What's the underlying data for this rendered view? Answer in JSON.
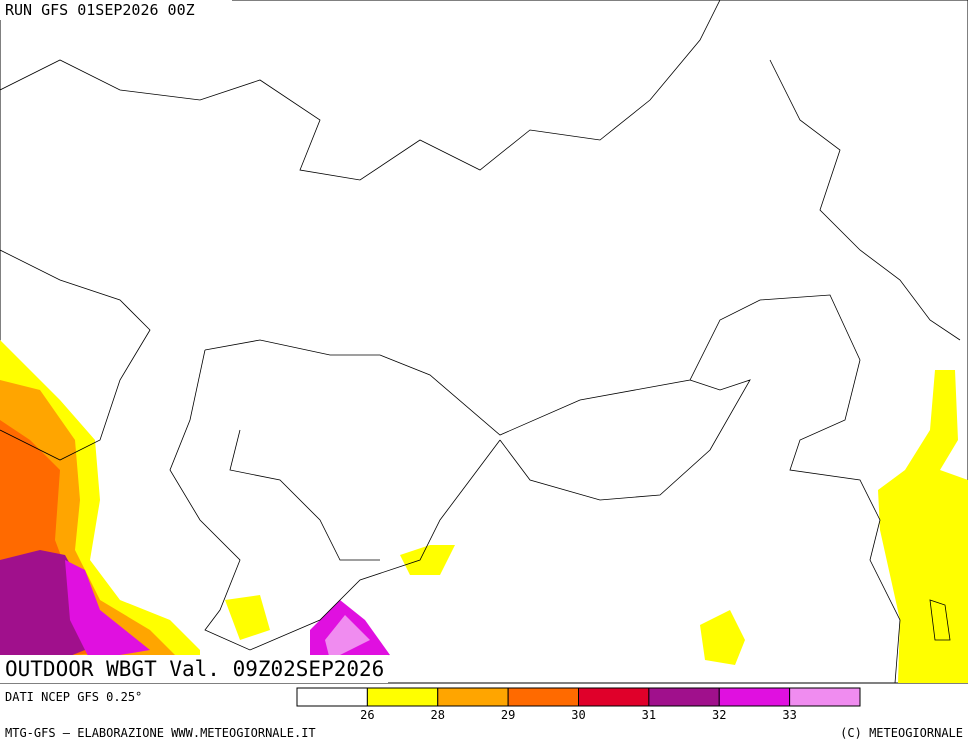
{
  "header": {
    "run": "RUN GFS 01SEP2026 00Z"
  },
  "map": {
    "title": "OUTDOOR WBGT Val. 09Z02SEP2026"
  },
  "footer": {
    "source": "DATI NCEP GFS 0.25°",
    "credit_left": "MTG-GFS — ELABORAZIONE WWW.METEOGIORNALE.IT",
    "credit_right": "(C) METEOGIORNALE"
  },
  "colorbar": {
    "colors": [
      "#ffffff",
      "#ffff00",
      "#ffa500",
      "#ff6a00",
      "#e0002a",
      "#a0108c",
      "#e010e0",
      "#f08cf0"
    ],
    "labels": [
      26,
      28,
      29,
      30,
      31,
      32,
      33
    ]
  }
}
